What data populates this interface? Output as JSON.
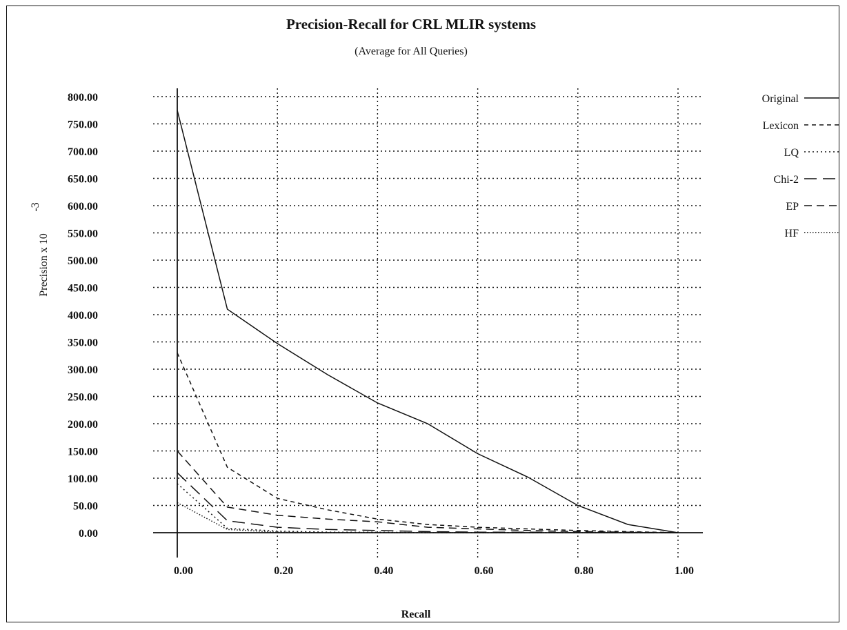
{
  "chart_data": {
    "type": "line",
    "title": "Precision-Recall for CRL MLIR systems",
    "subtitle": "(Average for All Queries)",
    "xlabel": "Recall",
    "ylabel": "Precision x 10",
    "ylabel_exponent": "-3",
    "xlim": [
      0.0,
      1.0
    ],
    "ylim": [
      0,
      800
    ],
    "grid": true,
    "legend_position": "right",
    "x_ticks": [
      "0.00",
      "0.20",
      "0.40",
      "0.60",
      "0.80",
      "1.00"
    ],
    "y_ticks": [
      "0.00",
      "50.00",
      "100.00",
      "150.00",
      "200.00",
      "250.00",
      "300.00",
      "350.00",
      "400.00",
      "450.00",
      "500.00",
      "550.00",
      "600.00",
      "650.00",
      "700.00",
      "750.00",
      "800.00"
    ],
    "x": [
      0.0,
      0.1,
      0.2,
      0.3,
      0.4,
      0.5,
      0.6,
      0.7,
      0.8,
      0.9,
      1.0
    ],
    "series": [
      {
        "name": "Original",
        "dash": "solid",
        "values": [
          775,
          410,
          347,
          290,
          238,
          200,
          145,
          102,
          50,
          15,
          0
        ]
      },
      {
        "name": "Lexicon",
        "dash": "short-dash",
        "values": [
          330,
          120,
          63,
          42,
          25,
          15,
          10,
          7,
          4,
          2,
          0
        ]
      },
      {
        "name": "LQ",
        "dash": "dotted",
        "values": [
          90,
          8,
          3,
          1,
          1,
          0,
          0,
          0,
          0,
          0,
          0
        ]
      },
      {
        "name": "Chi-2",
        "dash": "long-dash",
        "values": [
          110,
          22,
          10,
          6,
          4,
          2,
          1,
          1,
          0,
          0,
          0
        ]
      },
      {
        "name": "EP",
        "dash": "medium-dash",
        "values": [
          150,
          47,
          32,
          25,
          20,
          10,
          7,
          4,
          2,
          1,
          0
        ]
      },
      {
        "name": "HF",
        "dash": "fine-dotted",
        "values": [
          55,
          6,
          1,
          0,
          0,
          0,
          0,
          0,
          0,
          0,
          0
        ]
      }
    ]
  }
}
